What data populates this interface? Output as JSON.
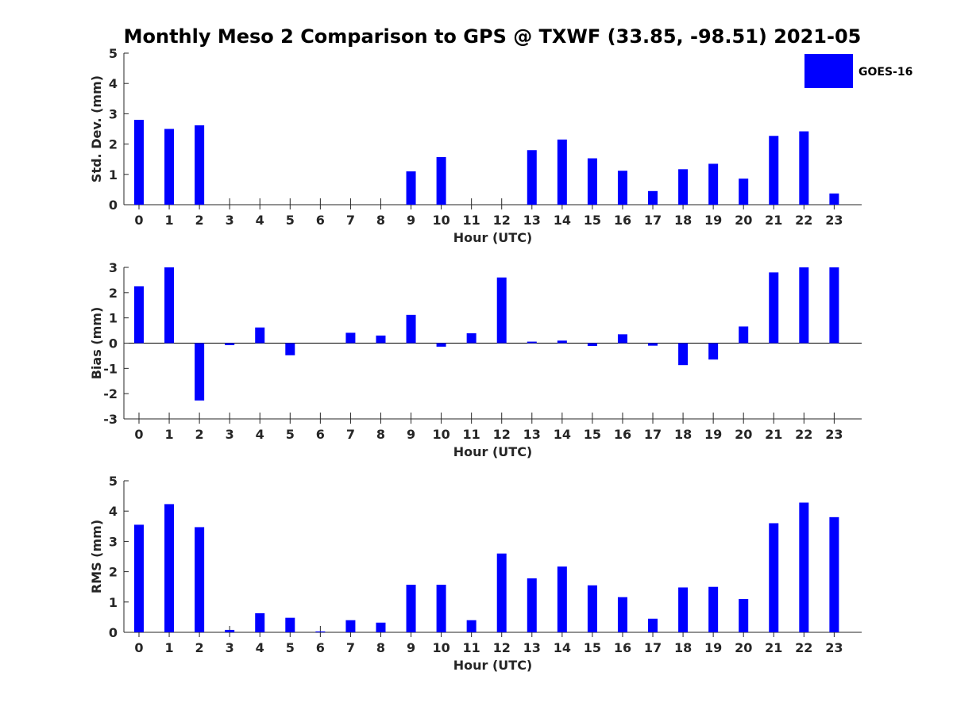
{
  "chart_data": {
    "type": "bar",
    "title": "Monthly Meso 2 Comparison to GPS @ TXWF (33.85, -98.51) 2021-05",
    "legend": {
      "entries": [
        "GOES-16"
      ],
      "position": "top-right",
      "color": "#0000FF"
    },
    "bar_color": "#0000FF",
    "panels": [
      {
        "ylabel": "Std. Dev. (mm)",
        "xlabel": "Hour (UTC)",
        "ylim": [
          0,
          5
        ],
        "yticks": [
          0,
          1,
          2,
          3,
          4,
          5
        ],
        "categories": [
          "0",
          "1",
          "2",
          "3",
          "4",
          "5",
          "6",
          "7",
          "8",
          "9",
          "10",
          "11",
          "12",
          "13",
          "14",
          "15",
          "16",
          "17",
          "18",
          "19",
          "20",
          "21",
          "22",
          "23"
        ],
        "values": [
          2.8,
          2.5,
          2.62,
          0,
          0,
          0,
          0,
          0,
          0,
          1.1,
          1.57,
          0,
          0,
          1.8,
          2.15,
          1.53,
          1.12,
          0.45,
          1.17,
          1.35,
          0.86,
          2.27,
          2.42,
          0.37
        ]
      },
      {
        "ylabel": "Bias (mm)",
        "xlabel": "Hour (UTC)",
        "ylim": [
          -3,
          3
        ],
        "yticks": [
          -3,
          -2,
          -1,
          0,
          1,
          2,
          3
        ],
        "categories": [
          "0",
          "1",
          "2",
          "3",
          "4",
          "5",
          "6",
          "7",
          "8",
          "9",
          "10",
          "11",
          "12",
          "13",
          "14",
          "15",
          "16",
          "17",
          "18",
          "19",
          "20",
          "21",
          "22",
          "23"
        ],
        "values": [
          2.25,
          3.0,
          -2.27,
          -0.08,
          0.62,
          -0.48,
          0,
          0.41,
          0.3,
          1.12,
          -0.14,
          0.39,
          2.6,
          0.06,
          0.1,
          -0.11,
          0.35,
          -0.1,
          -0.87,
          -0.65,
          0.66,
          2.8,
          3.0,
          3.0
        ]
      },
      {
        "ylabel": "RMS (mm)",
        "xlabel": "Hour (UTC)",
        "ylim": [
          0,
          5
        ],
        "yticks": [
          0,
          1,
          2,
          3,
          4,
          5
        ],
        "categories": [
          "0",
          "1",
          "2",
          "3",
          "4",
          "5",
          "6",
          "7",
          "8",
          "9",
          "10",
          "11",
          "12",
          "13",
          "14",
          "15",
          "16",
          "17",
          "18",
          "19",
          "20",
          "21",
          "22",
          "23"
        ],
        "values": [
          3.55,
          4.23,
          3.47,
          0.08,
          0.63,
          0.48,
          0.03,
          0.4,
          0.32,
          1.57,
          1.57,
          0.4,
          2.6,
          1.78,
          2.17,
          1.55,
          1.16,
          0.45,
          1.48,
          1.5,
          1.1,
          3.6,
          4.28,
          3.8
        ]
      }
    ]
  }
}
